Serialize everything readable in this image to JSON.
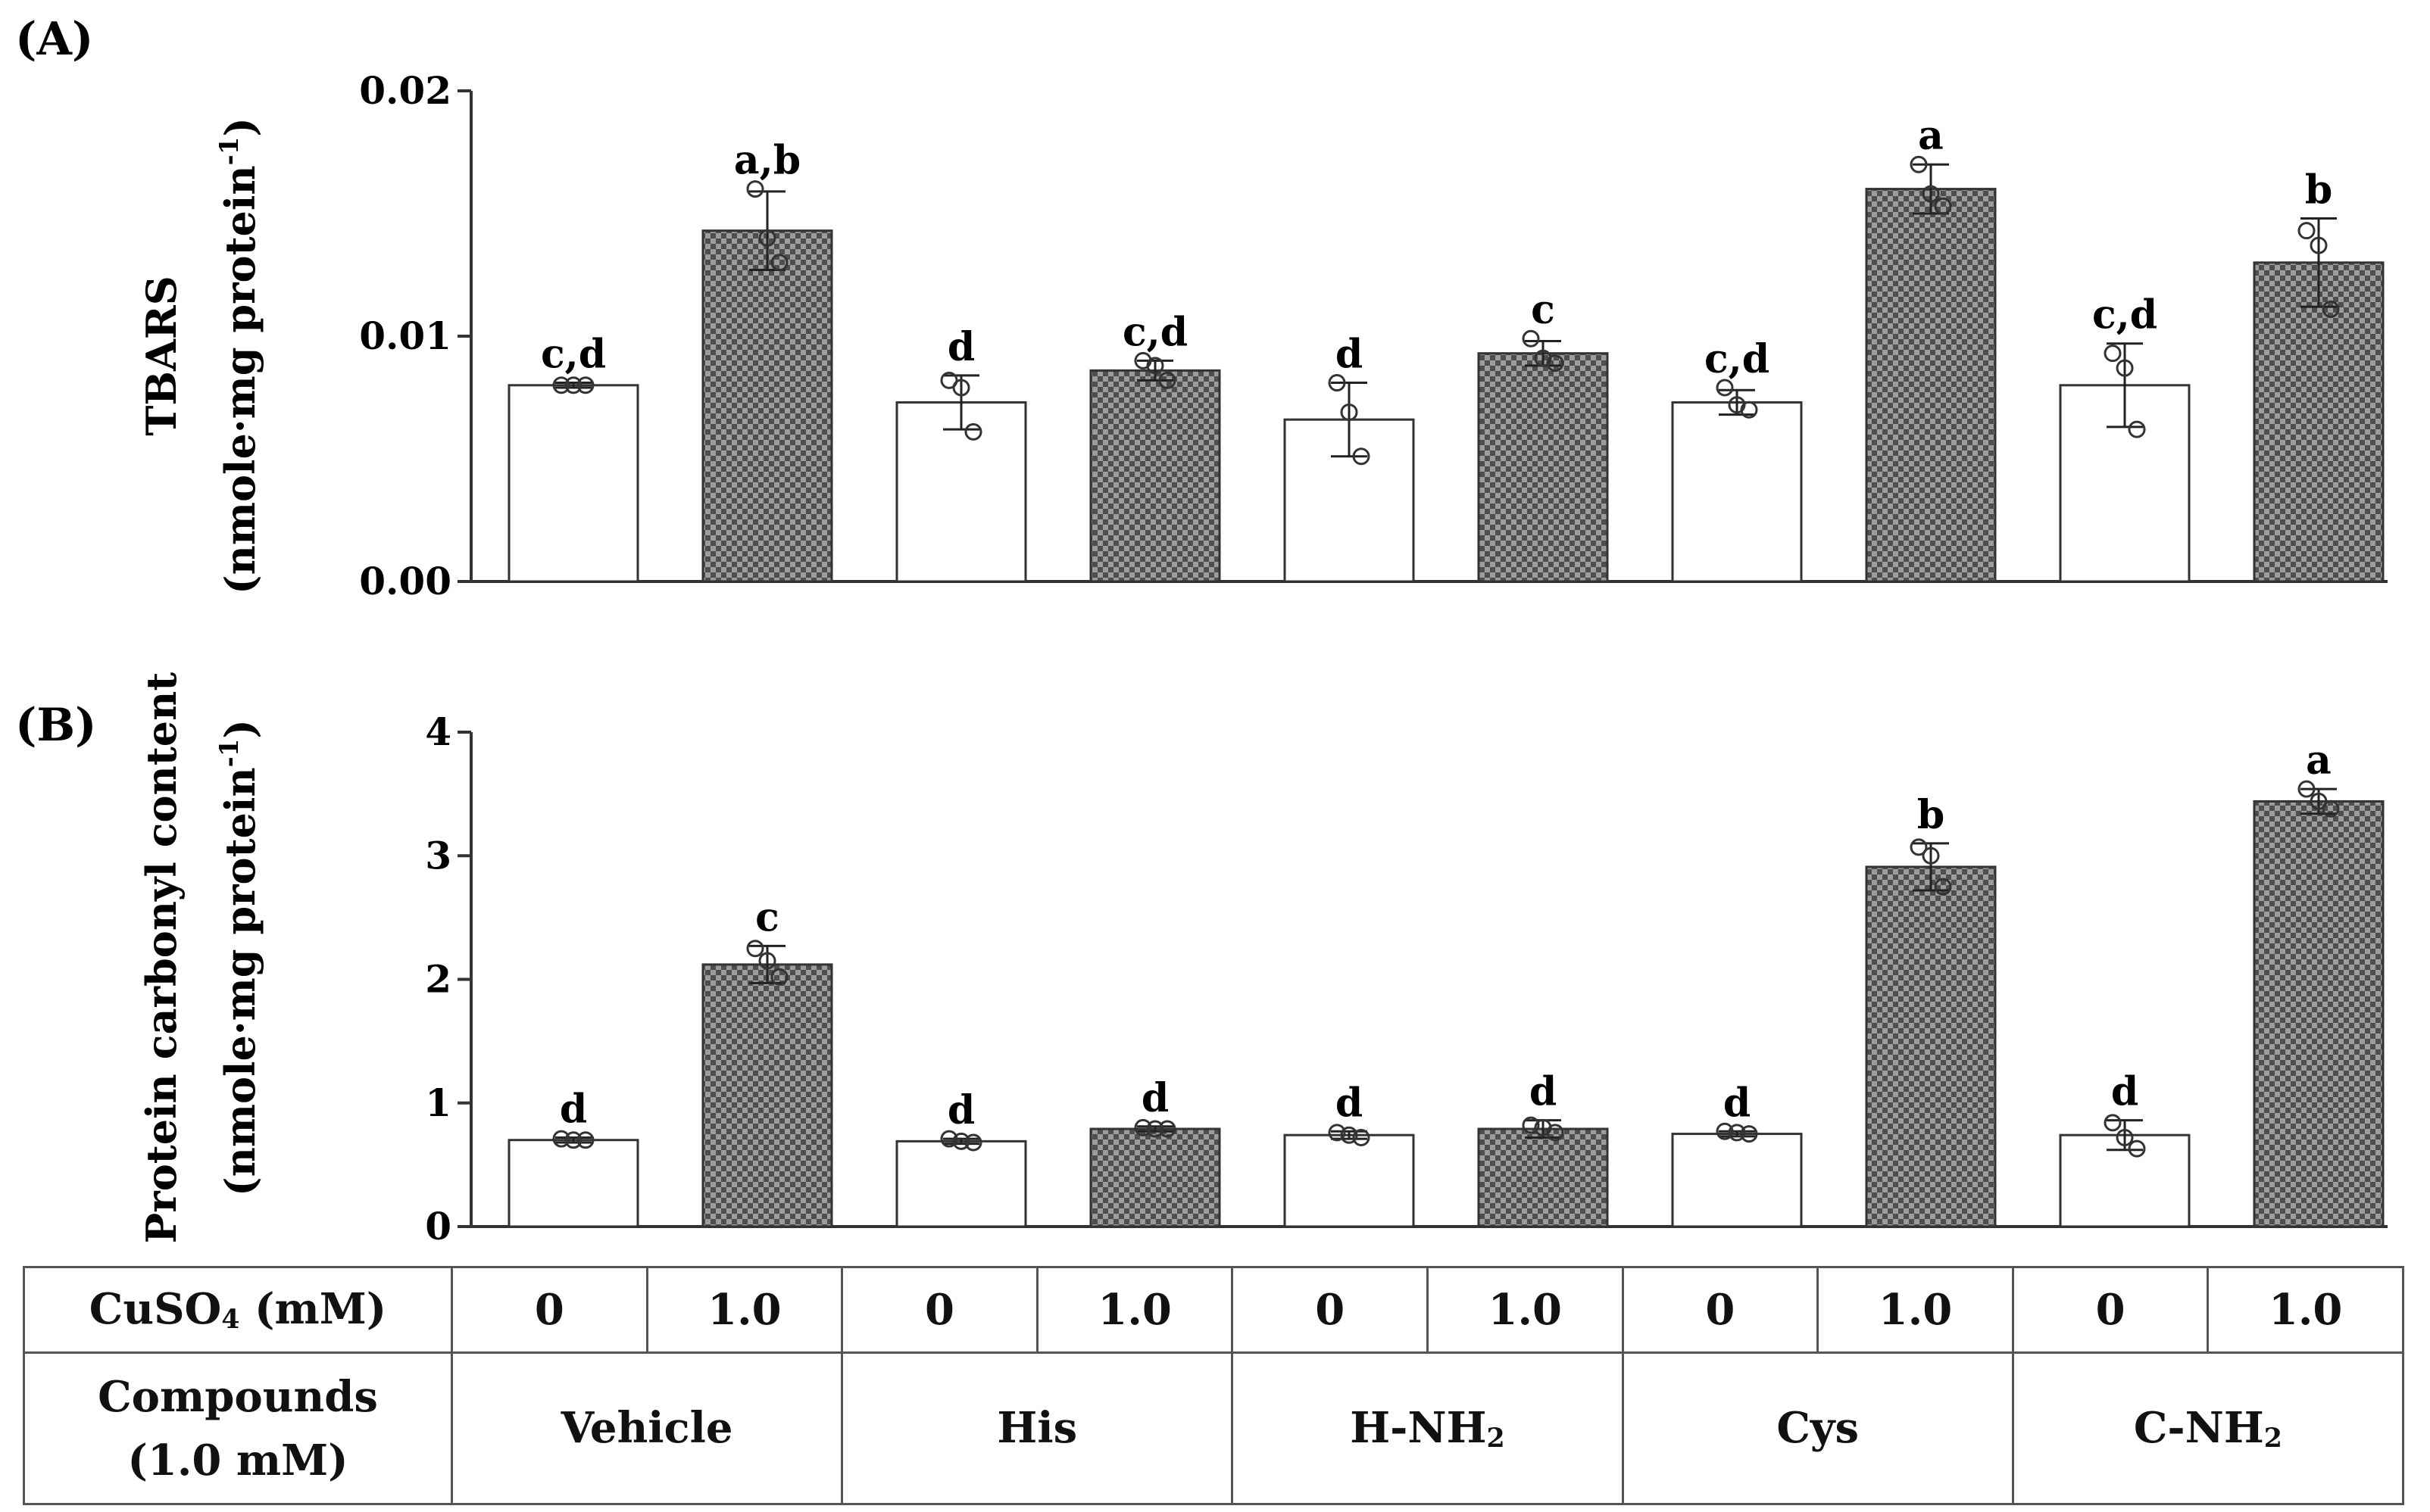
{
  "colors": {
    "open_fill": "#ffffff",
    "treated_fill_a": "#4e4e4e",
    "treated_fill_b": "#9c9c9c",
    "axis": "#333333",
    "border": "#555555"
  },
  "chart_data": [
    {
      "panel_label": "(A)",
      "type": "bar",
      "ylabel_line1": "TBARS",
      "ylabel_line2_main": "(nmole·mg protein",
      "ylabel_line2_sup": "-1",
      "ylabel_line2_end": ")",
      "ylim": [
        0,
        0.02
      ],
      "yticks": [
        {
          "value": 0.0,
          "label": "0.00"
        },
        {
          "value": 0.01,
          "label": "0.01"
        },
        {
          "value": 0.02,
          "label": "0.02"
        }
      ],
      "bars": [
        {
          "value": 0.008,
          "sd": 0.0001,
          "treated": false,
          "letter": "c,d",
          "points": [
            0.008,
            0.008,
            0.008
          ]
        },
        {
          "value": 0.0143,
          "sd": 0.0016,
          "treated": true,
          "letter": "a,b",
          "points": [
            0.016,
            0.014,
            0.013
          ]
        },
        {
          "value": 0.0073,
          "sd": 0.0011,
          "treated": false,
          "letter": "d",
          "points": [
            0.0082,
            0.0079,
            0.0061
          ]
        },
        {
          "value": 0.0086,
          "sd": 0.0004,
          "treated": true,
          "letter": "c,d",
          "points": [
            0.009,
            0.0088,
            0.0082
          ]
        },
        {
          "value": 0.0066,
          "sd": 0.0015,
          "treated": false,
          "letter": "d",
          "points": [
            0.0081,
            0.0069,
            0.0051
          ]
        },
        {
          "value": 0.0093,
          "sd": 0.0005,
          "treated": true,
          "letter": "c",
          "points": [
            0.0099,
            0.0091,
            0.0089
          ]
        },
        {
          "value": 0.0073,
          "sd": 0.0005,
          "treated": false,
          "letter": "c,d",
          "points": [
            0.0079,
            0.0072,
            0.007
          ]
        },
        {
          "value": 0.016,
          "sd": 0.001,
          "treated": true,
          "letter": "a",
          "points": [
            0.017,
            0.0158,
            0.0153
          ]
        },
        {
          "value": 0.008,
          "sd": 0.0017,
          "treated": false,
          "letter": "c,d",
          "points": [
            0.0093,
            0.0087,
            0.0062
          ]
        },
        {
          "value": 0.013,
          "sd": 0.0018,
          "treated": true,
          "letter": "b",
          "points": [
            0.0143,
            0.0137,
            0.0111
          ]
        }
      ]
    },
    {
      "panel_label": "(B)",
      "type": "bar",
      "ylabel_line1": "Protein carbonyl content",
      "ylabel_line2_main": "(nmole·mg protein",
      "ylabel_line2_sup": "-1",
      "ylabel_line2_end": ")",
      "ylim": [
        0,
        4
      ],
      "yticks": [
        {
          "value": 0,
          "label": "0"
        },
        {
          "value": 1,
          "label": "1"
        },
        {
          "value": 2,
          "label": "2"
        },
        {
          "value": 3,
          "label": "3"
        },
        {
          "value": 4,
          "label": "4"
        }
      ],
      "bars": [
        {
          "value": 0.7,
          "sd": 0.02,
          "treated": false,
          "letter": "d",
          "points": [
            0.71,
            0.7,
            0.7
          ]
        },
        {
          "value": 2.12,
          "sd": 0.15,
          "treated": true,
          "letter": "c",
          "points": [
            2.25,
            2.15,
            2.02
          ]
        },
        {
          "value": 0.69,
          "sd": 0.02,
          "treated": false,
          "letter": "d",
          "points": [
            0.71,
            0.69,
            0.68
          ]
        },
        {
          "value": 0.79,
          "sd": 0.02,
          "treated": true,
          "letter": "d",
          "points": [
            0.8,
            0.79,
            0.79
          ]
        },
        {
          "value": 0.74,
          "sd": 0.03,
          "treated": false,
          "letter": "d",
          "points": [
            0.76,
            0.74,
            0.72
          ]
        },
        {
          "value": 0.79,
          "sd": 0.07,
          "treated": true,
          "letter": "d",
          "points": [
            0.82,
            0.8,
            0.76
          ]
        },
        {
          "value": 0.75,
          "sd": 0.02,
          "treated": false,
          "letter": "d",
          "points": [
            0.77,
            0.76,
            0.75
          ]
        },
        {
          "value": 2.91,
          "sd": 0.19,
          "treated": true,
          "letter": "b",
          "points": [
            3.07,
            3.0,
            2.75
          ]
        },
        {
          "value": 0.74,
          "sd": 0.12,
          "treated": false,
          "letter": "d",
          "points": [
            0.84,
            0.72,
            0.63
          ]
        },
        {
          "value": 3.44,
          "sd": 0.1,
          "treated": true,
          "letter": "a",
          "points": [
            3.54,
            3.44,
            3.38
          ]
        }
      ]
    }
  ],
  "table": {
    "row1_label_main": "CuSO",
    "row1_label_sub": "4",
    "row1_label_end": " (mM)",
    "cuso4_values": [
      "0",
      "1.0",
      "0",
      "1.0",
      "0",
      "1.0",
      "0",
      "1.0",
      "0",
      "1.0"
    ],
    "row2_label_line1": "Compounds",
    "row2_label_line2": "(1.0 mM)",
    "compounds": [
      {
        "main": "Vehicle",
        "sub": "",
        "end": ""
      },
      {
        "main": "His",
        "sub": "",
        "end": ""
      },
      {
        "main": "H-NH",
        "sub": "2",
        "end": ""
      },
      {
        "main": "Cys",
        "sub": "",
        "end": ""
      },
      {
        "main": "C-NH",
        "sub": "2",
        "end": ""
      }
    ]
  }
}
